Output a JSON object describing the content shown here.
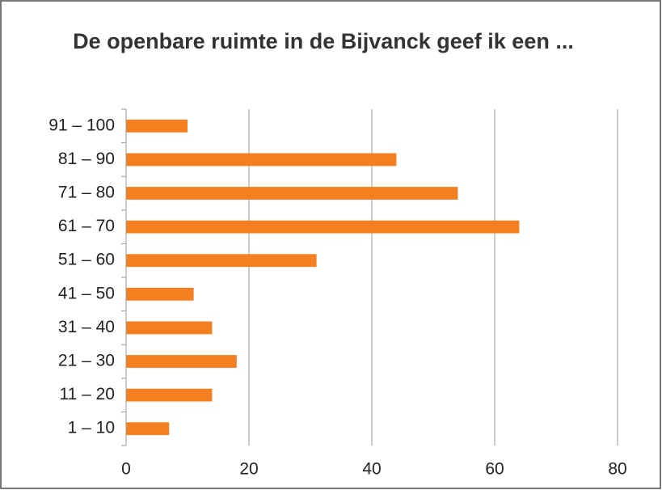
{
  "chart_data": {
    "type": "barh",
    "title": "De openbare ruimte in de Bijvanck geef ik een ...",
    "categories": [
      "1 – 10",
      "11 – 20",
      "21 – 30",
      "31 – 40",
      "41 – 50",
      "51 – 60",
      "61 – 70",
      "71 – 80",
      "81 – 90",
      "91 – 100"
    ],
    "values": [
      7,
      14,
      18,
      14,
      11,
      31,
      64,
      54,
      44,
      10
    ],
    "color": "#f47f20",
    "xlim": [
      0,
      80
    ],
    "xticks": [
      0,
      20,
      40,
      60,
      80
    ],
    "grid": true
  }
}
